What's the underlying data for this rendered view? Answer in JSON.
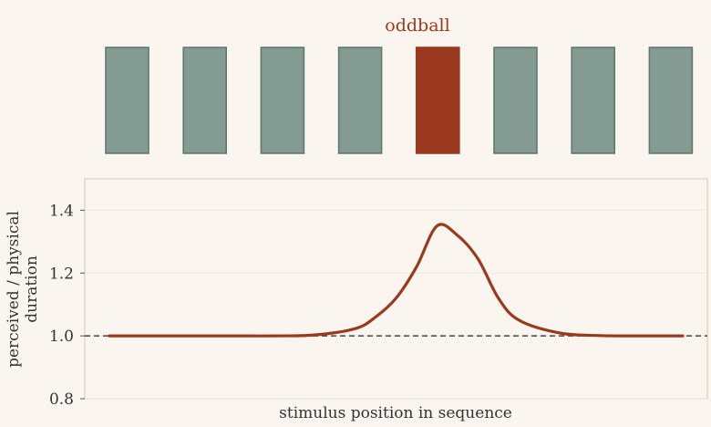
{
  "chart_data": [
    {
      "type": "bar",
      "annotation": "oddball",
      "stimuli": [
        {
          "kind": "standard"
        },
        {
          "kind": "standard"
        },
        {
          "kind": "standard"
        },
        {
          "kind": "standard"
        },
        {
          "kind": "oddball"
        },
        {
          "kind": "standard"
        },
        {
          "kind": "standard"
        },
        {
          "kind": "standard"
        }
      ],
      "colors": {
        "standard_fill": "#849b94",
        "standard_stroke": "#5e7a70",
        "oddball_fill": "#9a391d",
        "annotation": "#9a391d"
      }
    },
    {
      "type": "line",
      "xlabel": "stimulus position in sequence",
      "ylabel_lines": [
        "perceived / physical",
        "duration"
      ],
      "ylim": [
        0.8,
        1.5
      ],
      "yticks": [
        "0.8",
        "1.0",
        "1.2",
        "1.4"
      ],
      "ytick_values": [
        0.8,
        1.0,
        1.2,
        1.4
      ],
      "grid": true,
      "reference_line": {
        "y": 1.0,
        "style": "dashed"
      },
      "series": [
        {
          "x": [
            0,
            0.5,
            1,
            1.5,
            2,
            2.5,
            3,
            3.25,
            3.5,
            3.75,
            4,
            4.25,
            4.5,
            4.75,
            5,
            5.5,
            6,
            6.5,
            7
          ],
          "y": [
            1.0,
            1.0,
            1.0,
            1.0,
            1.0,
            1.003,
            1.023,
            1.06,
            1.12,
            1.22,
            1.35,
            1.32,
            1.245,
            1.12,
            1.05,
            1.009,
            1.001,
            1.0,
            1.0
          ]
        }
      ],
      "xlim": [
        -0.3,
        7.3
      ],
      "colors": {
        "line": "#9a391d",
        "reference": "#444444",
        "axis": "#d9cfc0",
        "grid": "#efe7da",
        "text": "#333333"
      }
    }
  ]
}
